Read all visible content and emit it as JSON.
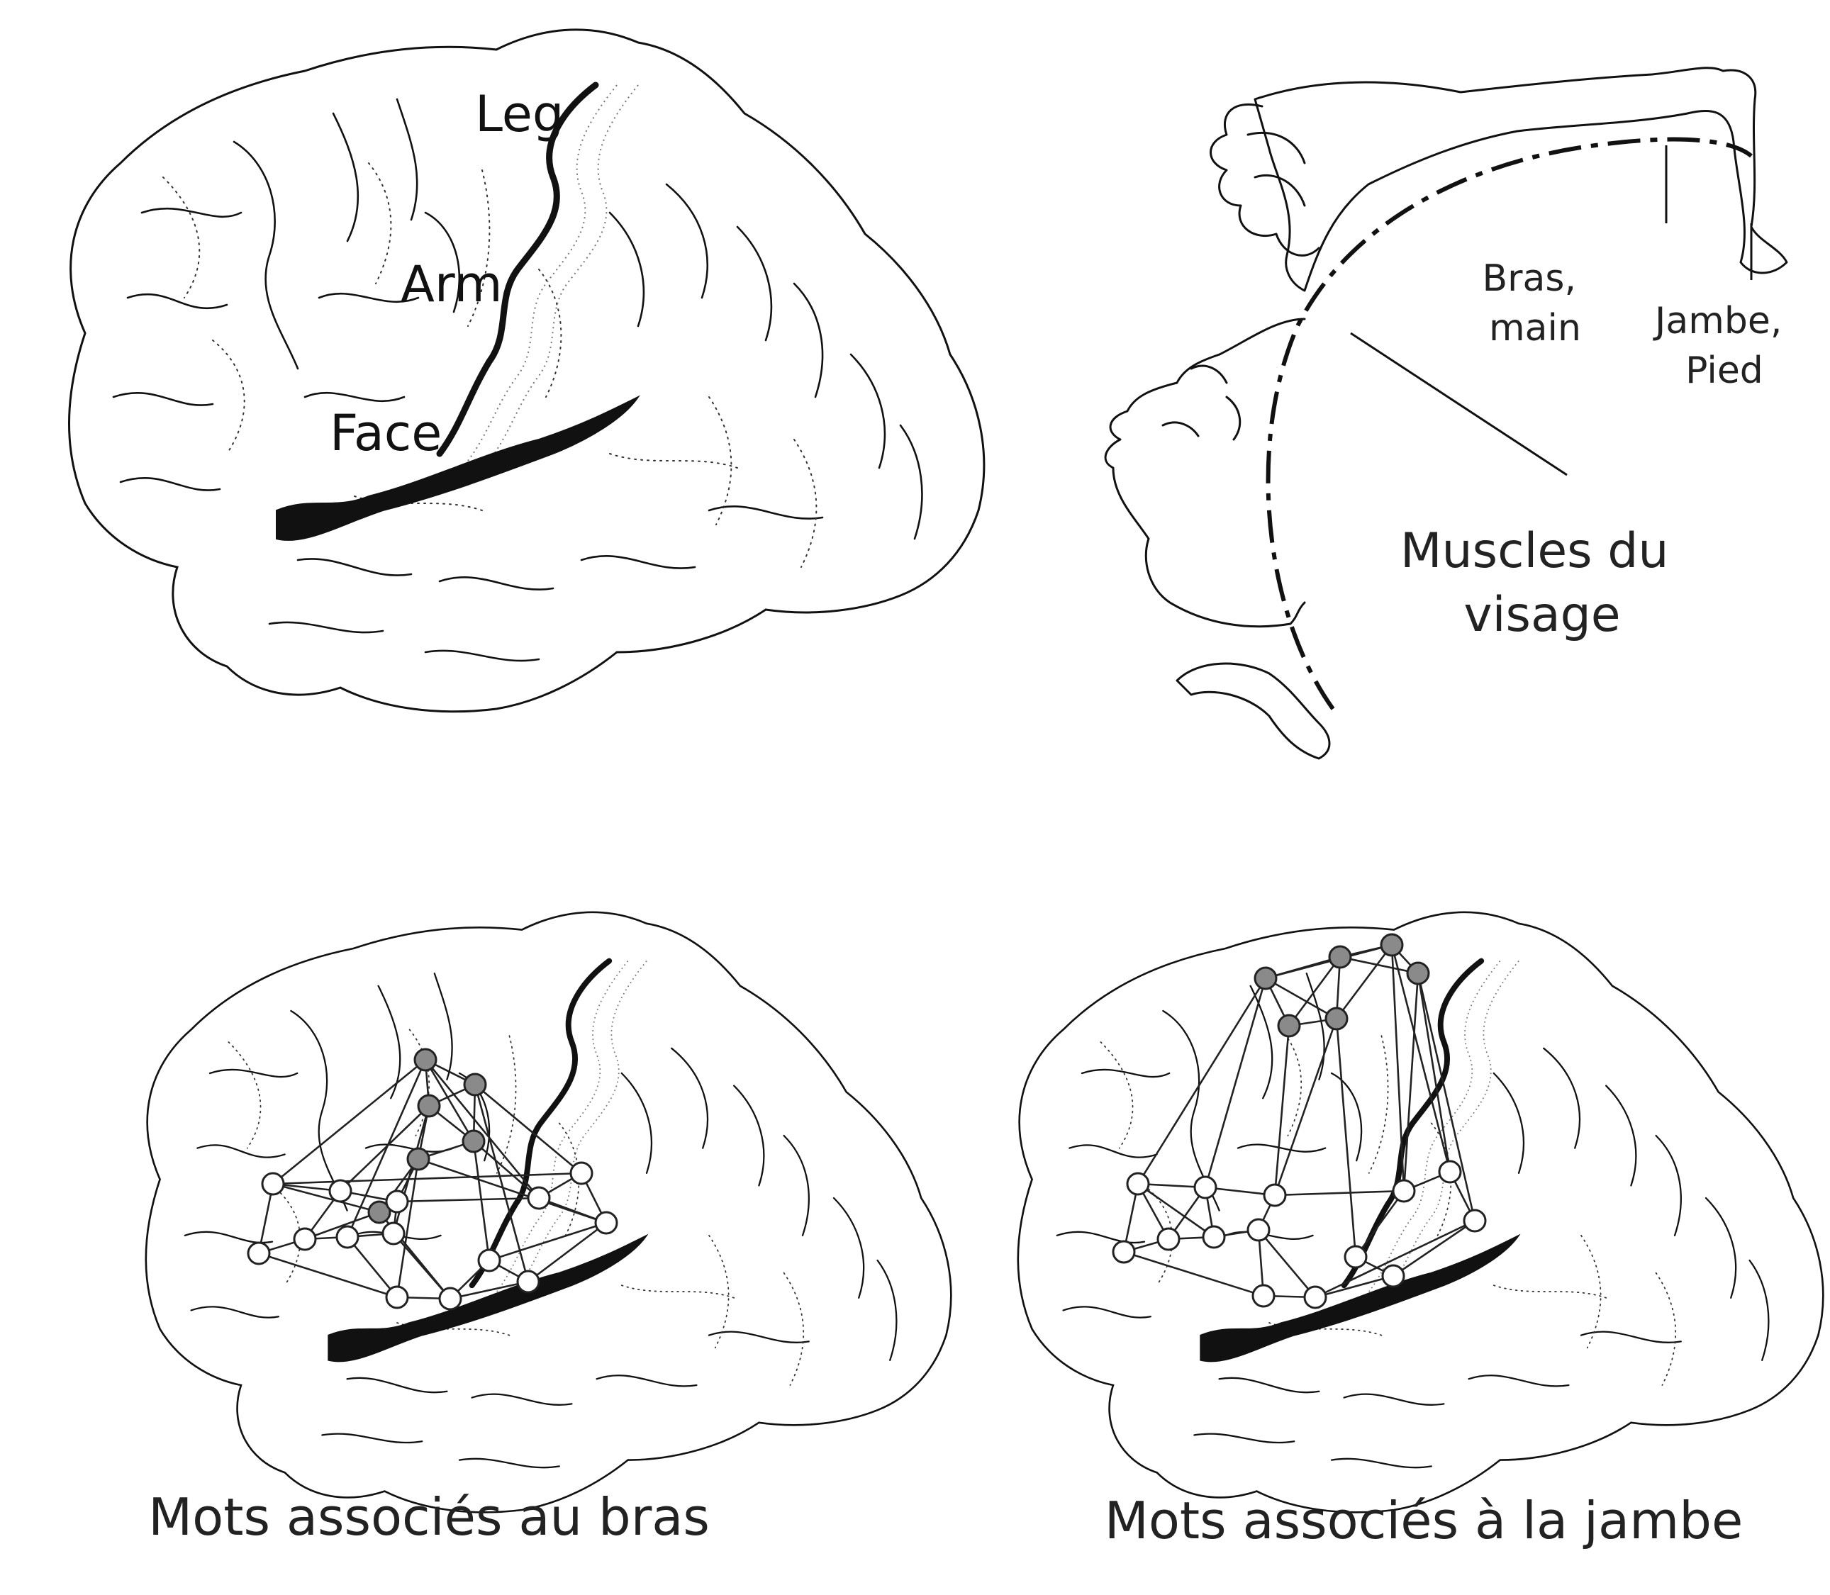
{
  "top_brain": {
    "labels": [
      "Leg",
      "Arm",
      "Face"
    ]
  },
  "homunculus": {
    "labels": [
      {
        "key": "arm",
        "lines": [
          "Bras,",
          "main"
        ]
      },
      {
        "key": "leg",
        "lines": [
          "Jambe,",
          "Pied"
        ]
      },
      {
        "key": "face",
        "lines": [
          "Muscles du",
          "visage"
        ]
      }
    ]
  },
  "captions": {
    "left": "Mots associés au bras",
    "right": "Mots associés à la jambe"
  }
}
